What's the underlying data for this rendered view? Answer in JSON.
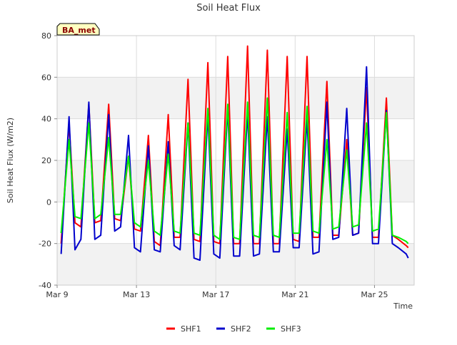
{
  "chart_data": {
    "type": "line",
    "title": "Soil Heat Flux",
    "xlabel": "Time",
    "ylabel": "Soil Heat Flux (W/m2)",
    "site_badge": "BA_met",
    "ylim": [
      -40,
      80
    ],
    "y_ticks": [
      -40,
      -20,
      0,
      20,
      40,
      60,
      80
    ],
    "xlim": [
      9,
      27
    ],
    "x_ticks": [
      {
        "value": 9,
        "label": "Mar 9"
      },
      {
        "value": 13,
        "label": "Mar 13"
      },
      {
        "value": 17,
        "label": "Mar 17"
      },
      {
        "value": 21,
        "label": "Mar 21"
      },
      {
        "value": 25,
        "label": "Mar 25"
      }
    ],
    "bands": [
      [
        -40,
        -20
      ],
      [
        0,
        20
      ],
      [
        40,
        60
      ]
    ],
    "grid": true,
    "legend": "bottom",
    "series": [
      {
        "name": "SHF1",
        "color": "#ff0000",
        "x": [
          9.2,
          9.6,
          9.9,
          10.2,
          10.6,
          10.9,
          11.2,
          11.6,
          11.9,
          12.2,
          12.6,
          12.9,
          13.2,
          13.6,
          13.9,
          14.2,
          14.6,
          14.9,
          15.2,
          15.6,
          15.9,
          16.2,
          16.6,
          16.9,
          17.2,
          17.6,
          17.9,
          18.2,
          18.6,
          18.9,
          19.2,
          19.6,
          19.9,
          20.2,
          20.6,
          20.9,
          21.2,
          21.6,
          21.9,
          22.2,
          22.6,
          22.9,
          23.2,
          23.6,
          23.9,
          24.2,
          24.6,
          24.9,
          25.2,
          25.6,
          25.9,
          26.2,
          26.6,
          26.7
        ],
        "y": [
          -20,
          38,
          -10,
          -12,
          47,
          -10,
          -9,
          47,
          -8,
          -9,
          22,
          -13,
          -14,
          32,
          -19,
          -21,
          42,
          -17,
          -17,
          59,
          -18,
          -19,
          67,
          -19,
          -20,
          70,
          -20,
          -20,
          75,
          -20,
          -20,
          73,
          -20,
          -20,
          70,
          -18,
          -19,
          70,
          -17,
          -17,
          58,
          -16,
          -16,
          30,
          -16,
          -15,
          55,
          -17,
          -17,
          50,
          -16,
          -18,
          -21,
          -22
        ]
      },
      {
        "name": "SHF2",
        "color": "#0000cc",
        "x": [
          9.2,
          9.6,
          9.9,
          10.2,
          10.6,
          10.9,
          11.2,
          11.6,
          11.9,
          12.2,
          12.6,
          12.9,
          13.2,
          13.6,
          13.9,
          14.2,
          14.6,
          14.9,
          15.2,
          15.6,
          15.9,
          16.2,
          16.6,
          16.9,
          17.2,
          17.6,
          17.9,
          18.2,
          18.6,
          18.9,
          19.2,
          19.6,
          19.9,
          20.2,
          20.6,
          20.9,
          21.2,
          21.6,
          21.9,
          22.2,
          22.6,
          22.9,
          23.2,
          23.6,
          23.9,
          24.2,
          24.6,
          24.9,
          25.2,
          25.6,
          25.9,
          26.2,
          26.6,
          26.7
        ],
        "y": [
          -25,
          41,
          -23,
          -18,
          48,
          -18,
          -16,
          42,
          -14,
          -12,
          32,
          -22,
          -24,
          27,
          -23,
          -24,
          29,
          -21,
          -23,
          38,
          -27,
          -28,
          42,
          -25,
          -27,
          45,
          -26,
          -26,
          43,
          -26,
          -25,
          41,
          -24,
          -24,
          35,
          -22,
          -22,
          40,
          -25,
          -24,
          48,
          -18,
          -17,
          45,
          -16,
          -15,
          65,
          -20,
          -20,
          44,
          -20,
          -22,
          -25,
          -27
        ]
      },
      {
        "name": "SHF3",
        "color": "#00ee00",
        "x": [
          9.2,
          9.6,
          9.9,
          10.2,
          10.6,
          10.9,
          11.2,
          11.6,
          11.9,
          12.2,
          12.6,
          12.9,
          13.2,
          13.6,
          13.9,
          14.2,
          14.6,
          14.9,
          15.2,
          15.6,
          15.9,
          16.2,
          16.6,
          16.9,
          17.2,
          17.6,
          17.9,
          18.2,
          18.6,
          18.9,
          19.2,
          19.6,
          19.9,
          20.2,
          20.6,
          20.9,
          21.2,
          21.6,
          21.9,
          22.2,
          22.6,
          22.9,
          23.2,
          23.6,
          23.9,
          24.2,
          24.6,
          24.9,
          25.2,
          25.6,
          25.9,
          26.2,
          26.6,
          26.7
        ],
        "y": [
          -15,
          30,
          -7,
          -8,
          38,
          -8,
          -6,
          31,
          -6,
          -6,
          22,
          -10,
          -12,
          20,
          -14,
          -16,
          23,
          -14,
          -15,
          38,
          -15,
          -16,
          45,
          -16,
          -18,
          47,
          -17,
          -18,
          48,
          -16,
          -17,
          50,
          -16,
          -17,
          43,
          -15,
          -15,
          46,
          -14,
          -15,
          30,
          -13,
          -12,
          25,
          -12,
          -11,
          38,
          -14,
          -13,
          43,
          -16,
          -17,
          -19,
          -20
        ]
      }
    ]
  }
}
